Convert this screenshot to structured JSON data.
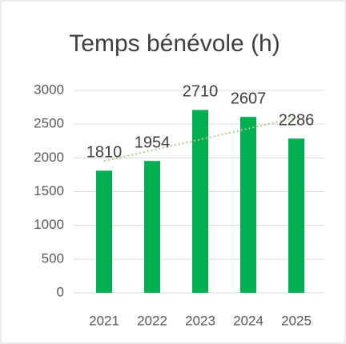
{
  "chart_data": {
    "type": "bar",
    "title": "Temps bénévole (h)",
    "categories": [
      "2021",
      "2022",
      "2023",
      "2024",
      "2025"
    ],
    "values": [
      1810,
      1954,
      2710,
      2607,
      2286
    ],
    "color": "#00b050",
    "ylim": [
      0,
      3000
    ],
    "yticks": [
      0,
      500,
      1000,
      1500,
      2000,
      2500,
      3000
    ],
    "grid": true,
    "data_labels": true,
    "trendline": true,
    "trendline_color": "#a9d18e"
  }
}
